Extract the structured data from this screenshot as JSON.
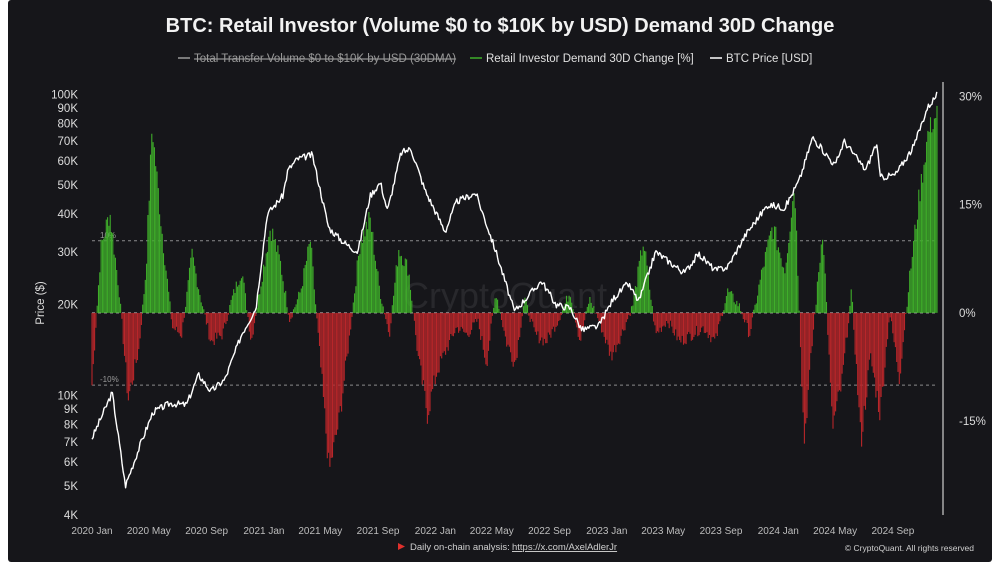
{
  "chart_data": {
    "type": "line",
    "title": "BTC: Retail Investor (Volume $0 to $10K by USD) Demand 30D Change",
    "legend": [
      {
        "name": "Total Transfer Volume $0 to $10K by USD (30DMA)",
        "color": "#9a9a9a",
        "hidden": true
      },
      {
        "name": "Retail Investor Demand 30D Change [%]",
        "color": "#3fae2a"
      },
      {
        "name": "BTC Price [USD]",
        "color": "#ffffff"
      }
    ],
    "legend_position": "top-center",
    "ylabel_left": "Price ($)",
    "y_left_scale": "log",
    "y_left_ticks": [
      "100K",
      "90K",
      "80K",
      "70K",
      "60K",
      "50K",
      "40K",
      "30K",
      "20K",
      "10K",
      "9K",
      "8K",
      "7K",
      "6K",
      "5K",
      "4K"
    ],
    "y_left_range": [
      4000,
      110000
    ],
    "y_right_ticks": [
      "30%",
      "15%",
      "0%",
      "-15%"
    ],
    "y_right_range": [
      -28,
      32
    ],
    "reference_lines": [
      {
        "value": 10,
        "label": "10%"
      },
      {
        "value": 0,
        "label": ""
      },
      {
        "value": -10,
        "label": "-10%"
      }
    ],
    "x_ticks": [
      "2020 Jan",
      "2020 May",
      "2020 Sep",
      "2021 Jan",
      "2021 May",
      "2021 Sep",
      "2022 Jan",
      "2022 May",
      "2022 Sep",
      "2023 Jan",
      "2023 May",
      "2023 Sep",
      "2024 Jan",
      "2024 May",
      "2024 Sep"
    ],
    "x_range": [
      "2020-01-01",
      "2024-12-06"
    ],
    "grid": false,
    "series": [
      {
        "name": "BTC Price [USD]",
        "color": "#ffffff",
        "x": [
          "2020-01-01",
          "2020-02-13",
          "2020-03-12",
          "2020-03-16",
          "2020-04-15",
          "2020-05-10",
          "2020-06-15",
          "2020-07-20",
          "2020-08-15",
          "2020-09-10",
          "2020-10-10",
          "2020-11-15",
          "2020-12-15",
          "2021-01-08",
          "2021-02-10",
          "2021-02-21",
          "2021-03-13",
          "2021-04-14",
          "2021-05-19",
          "2021-06-22",
          "2021-07-20",
          "2021-08-15",
          "2021-09-06",
          "2021-09-21",
          "2021-10-20",
          "2021-11-10",
          "2021-12-10",
          "2022-01-22",
          "2022-02-15",
          "2022-03-28",
          "2022-05-10",
          "2022-06-18",
          "2022-08-15",
          "2022-09-15",
          "2022-10-15",
          "2022-11-09",
          "2022-12-15",
          "2023-01-15",
          "2023-02-15",
          "2023-03-10",
          "2023-04-15",
          "2023-06-15",
          "2023-07-15",
          "2023-08-20",
          "2023-09-15",
          "2023-10-25",
          "2023-12-10",
          "2024-01-15",
          "2024-02-15",
          "2024-03-14",
          "2024-05-01",
          "2024-05-20",
          "2024-07-05",
          "2024-07-28",
          "2024-08-05",
          "2024-09-06",
          "2024-10-15",
          "2024-11-13",
          "2024-12-06"
        ],
        "y": [
          7200,
          10200,
          5000,
          5200,
          7000,
          8800,
          9400,
          9300,
          11700,
          10300,
          11300,
          16000,
          19500,
          40000,
          46000,
          56000,
          61000,
          63000,
          36000,
          32000,
          30000,
          46000,
          51000,
          41000,
          64000,
          66000,
          48000,
          35000,
          44000,
          47000,
          30000,
          19000,
          24000,
          20000,
          19500,
          16500,
          17000,
          21000,
          23500,
          20500,
          30000,
          25500,
          29500,
          26000,
          26700,
          34500,
          43000,
          42000,
          52000,
          72000,
          58000,
          70000,
          56000,
          69000,
          53000,
          54000,
          67000,
          90000,
          101000
        ]
      },
      {
        "name": "Retail Investor Demand 30D Change [%]",
        "color_positive": "#3fae2a",
        "color_negative": "#b8262a",
        "x": [
          "2020-01-01",
          "2020-01-20",
          "2020-02-08",
          "2020-02-28",
          "2020-03-18",
          "2020-04-10",
          "2020-04-25",
          "2020-05-08",
          "2020-05-28",
          "2020-06-20",
          "2020-07-10",
          "2020-08-01",
          "2020-08-20",
          "2020-09-10",
          "2020-10-05",
          "2020-10-25",
          "2020-11-15",
          "2020-12-05",
          "2020-12-25",
          "2021-01-15",
          "2021-02-05",
          "2021-02-25",
          "2021-03-20",
          "2021-04-10",
          "2021-04-30",
          "2021-05-20",
          "2021-06-10",
          "2021-07-01",
          "2021-07-25",
          "2021-08-15",
          "2021-09-05",
          "2021-09-25",
          "2021-10-15",
          "2021-11-05",
          "2021-11-25",
          "2021-12-15",
          "2022-01-05",
          "2022-01-25",
          "2022-02-15",
          "2022-03-10",
          "2022-04-01",
          "2022-04-20",
          "2022-05-10",
          "2022-06-01",
          "2022-06-20",
          "2022-07-10",
          "2022-08-01",
          "2022-08-25",
          "2022-09-20",
          "2022-10-15",
          "2022-11-05",
          "2022-11-25",
          "2022-12-15",
          "2023-01-10",
          "2023-02-01",
          "2023-02-25",
          "2023-03-20",
          "2023-04-15",
          "2023-05-10",
          "2023-06-05",
          "2023-07-01",
          "2023-07-25",
          "2023-08-20",
          "2023-09-15",
          "2023-10-10",
          "2023-11-01",
          "2023-11-25",
          "2023-12-20",
          "2024-01-15",
          "2024-02-05",
          "2024-02-25",
          "2024-03-15",
          "2024-04-05",
          "2024-04-25",
          "2024-05-15",
          "2024-06-05",
          "2024-06-25",
          "2024-07-15",
          "2024-08-05",
          "2024-08-25",
          "2024-09-15",
          "2024-10-05",
          "2024-10-25",
          "2024-11-15",
          "2024-12-06"
        ],
        "y": [
          -10,
          9,
          14,
          3,
          -12,
          -5,
          6,
          26,
          12,
          -2,
          -3,
          8,
          2,
          -4,
          -3,
          2,
          6,
          -4,
          4,
          12,
          7,
          -1,
          3,
          10,
          -6,
          -22,
          -15,
          -4,
          10,
          13,
          3,
          -3,
          9,
          6,
          -6,
          -14,
          -8,
          -5,
          -2,
          -3,
          -1,
          -7,
          3,
          -4,
          -7,
          2,
          -3,
          -4,
          -1,
          3,
          -4,
          2,
          -1,
          -6,
          -3,
          1,
          10,
          -3,
          -1,
          -4,
          -3,
          -2,
          -4,
          3,
          1,
          -3,
          5,
          12,
          6,
          18,
          -18,
          -3,
          12,
          -16,
          -10,
          3,
          -18,
          -6,
          -14,
          0,
          -9,
          4,
          15,
          25,
          28
        ]
      }
    ]
  },
  "footer": {
    "note": "Daily on-chain analysis:",
    "link": "https://x.com/AxelAdlerJr",
    "copyright": "© CryptoQuant. All rights reserved"
  },
  "watermark": "CryptoQuant"
}
